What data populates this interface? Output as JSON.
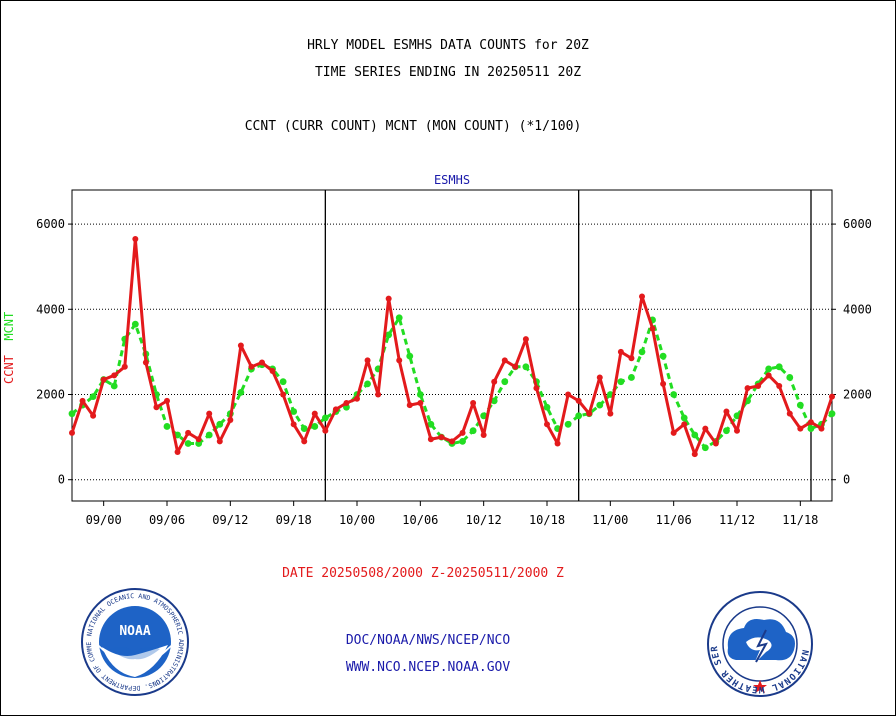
{
  "header": {
    "title_line1": "HRLY MODEL ESMHS DATA COUNTS for 20Z",
    "title_line2": "TIME SERIES ENDING IN 20250511 20Z",
    "subtitle": "CCNT (CURR COUNT) MCNT (MON COUNT) (*1/100)"
  },
  "colors": {
    "ccnt": "#e31a1c",
    "mcnt": "#22dd22",
    "title_blue": "#1a1aaa",
    "date_red": "#e31a1c"
  },
  "chart_data": {
    "type": "line",
    "title": "ESMHS",
    "ylabel_parts": [
      "CCNT",
      "MCNT"
    ],
    "x_ticks": [
      "09/00",
      "09/06",
      "09/12",
      "09/18",
      "10/00",
      "10/06",
      "10/12",
      "10/18",
      "11/00",
      "11/06",
      "11/12",
      "11/18"
    ],
    "y_ticks": [
      0,
      2000,
      4000,
      6000
    ],
    "ylim": [
      -500,
      6800
    ],
    "grid": true,
    "series": [
      {
        "name": "CCNT",
        "values": [
          1100,
          1850,
          1500,
          2350,
          2450,
          2650,
          5650,
          2750,
          1700,
          1850,
          650,
          1100,
          950,
          1550,
          900,
          1400,
          3150,
          2650,
          2750,
          2550,
          2000,
          1300,
          900,
          1550,
          1150,
          1650,
          1800,
          1900,
          2800,
          2000,
          4250,
          2800,
          1750,
          1800,
          950,
          1000,
          900,
          1100,
          1800,
          1050,
          2300,
          2800,
          2650,
          3300,
          2150,
          1300,
          850,
          2000,
          1850,
          1550,
          2400,
          1550,
          3000,
          2850,
          4300,
          3550,
          2250,
          1100,
          1300,
          600,
          1200,
          850,
          1600,
          1150,
          2150,
          2200,
          2450,
          2200,
          1550,
          1200,
          1350,
          1200,
          1950
        ]
      },
      {
        "name": "MCNT",
        "values": [
          1550,
          1750,
          1950,
          2350,
          2200,
          3300,
          3650,
          2950,
          2000,
          1250,
          1050,
          850,
          850,
          1050,
          1300,
          1550,
          2050,
          2600,
          2700,
          2600,
          2300,
          1600,
          1200,
          1250,
          1450,
          1600,
          1700,
          2000,
          2250,
          2600,
          3400,
          3800,
          2900,
          2000,
          1300,
          1000,
          850,
          900,
          1150,
          1500,
          1850,
          2300,
          2650,
          2650,
          2300,
          1700,
          1200,
          1300,
          1500,
          1550,
          1750,
          2000,
          2300,
          2400,
          3000,
          3750,
          2900,
          2000,
          1450,
          1050,
          750,
          900,
          1150,
          1500,
          1850,
          2250,
          2600,
          2650,
          2400,
          1750,
          1200,
          1300,
          1550
        ]
      }
    ]
  },
  "date_range": "DATE 20250508/2000 Z-20250511/2000 Z",
  "footer": {
    "line1": "DOC/NOAA/NWS/NCEP/NCO",
    "line2": "WWW.NCO.NCEP.NOAA.GOV"
  },
  "logos": {
    "noaa_label": "NOAA",
    "noaa_ring_top": "NATIONAL OCEANIC AND ATMOSPHERIC ADMINISTRATION",
    "noaa_ring_bottom": "U.S. DEPARTMENT OF COMMERCE",
    "nws_ring": "NATIONAL WEATHER SERVICE"
  }
}
